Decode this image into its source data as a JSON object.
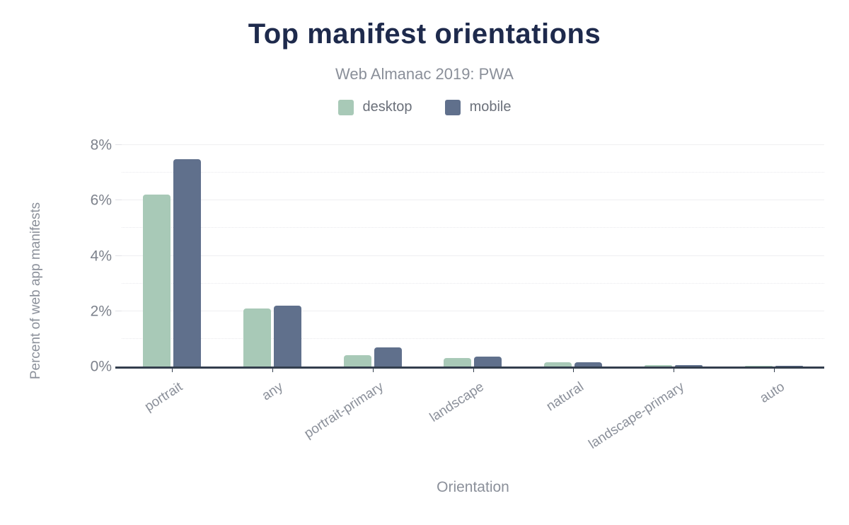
{
  "chart_data": {
    "type": "bar",
    "title": "Top manifest orientations",
    "subtitle": "Web Almanac 2019: PWA",
    "xlabel": "Orientation",
    "ylabel": "Percent of web app manifests",
    "categories": [
      "portrait",
      "any",
      "portrait-primary",
      "landscape",
      "natural",
      "landscape-primary",
      "auto"
    ],
    "series": [
      {
        "name": "desktop",
        "color": "#a8c9b7",
        "values": [
          6.2,
          2.1,
          0.4,
          0.3,
          0.15,
          0.05,
          0.03
        ]
      },
      {
        "name": "mobile",
        "color": "#60708c",
        "values": [
          7.5,
          2.2,
          0.7,
          0.35,
          0.15,
          0.05,
          0.03
        ]
      }
    ],
    "ylim": [
      0,
      8
    ],
    "yticks": [
      {
        "value": 0,
        "label": "0%"
      },
      {
        "value": 2,
        "label": "2%"
      },
      {
        "value": 4,
        "label": "4%"
      },
      {
        "value": 6,
        "label": "6%"
      },
      {
        "value": 8,
        "label": "8%"
      }
    ],
    "minor_tick_step": 1,
    "grid": true,
    "legend_position": "top"
  },
  "colors": {
    "title": "#1e2a4c",
    "subtitle": "#8a8f99",
    "axis_line": "#333e4d",
    "tick_label": "#7d828c",
    "category_label": "#8b909a"
  }
}
